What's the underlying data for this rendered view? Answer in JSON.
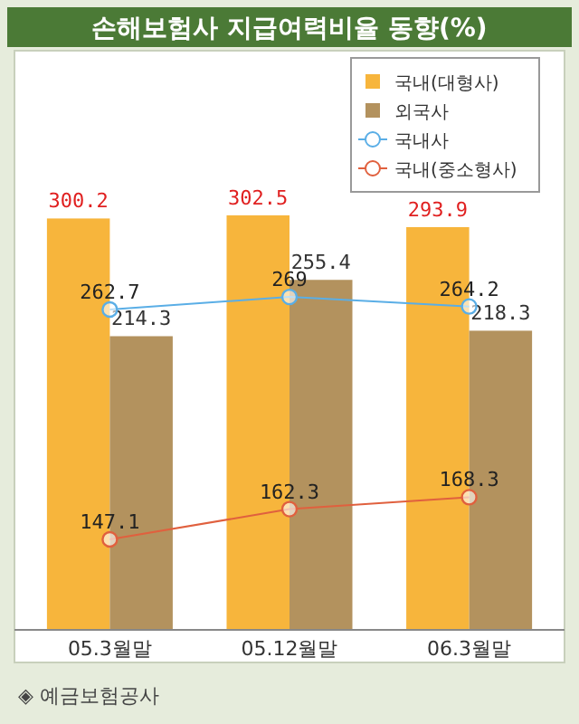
{
  "chart_data": {
    "type": "bar",
    "title": "손해보험사 지급여력비율 동향(%)",
    "categories": [
      "05.3월말",
      "05.12월말",
      "06.3월말"
    ],
    "series": [
      {
        "name": "국내(대형사)",
        "color": "#f7b53c",
        "values": [
          300.2,
          302.5,
          293.9
        ]
      },
      {
        "name": "외국사",
        "color": "#b3925e",
        "values": [
          214.3,
          255.4,
          218.3
        ]
      },
      {
        "name": "국내사",
        "type": "line",
        "axis": "y2",
        "color": "#5aaee6",
        "values": [
          262.7,
          269.0,
          264.2
        ]
      },
      {
        "name": "국내(중소형사)",
        "type": "line",
        "axis": "y2",
        "color": "#e0603e",
        "values": [
          147.1,
          162.3,
          168.3
        ]
      }
    ],
    "ylim": [
      0,
      420
    ],
    "y2lim": [
      101.6,
      391
    ],
    "tick_labels": "x",
    "data_labels": true,
    "legend": "top right",
    "marker": "circle",
    "line_style": "solid",
    "annotations": [
      "◈ 예금보험공사"
    ]
  }
}
